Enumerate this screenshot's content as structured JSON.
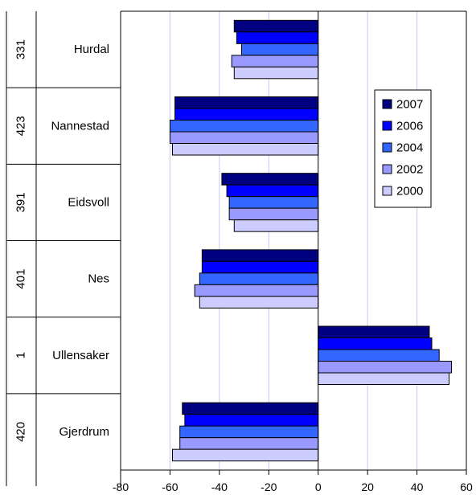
{
  "chart_data": {
    "type": "bar",
    "orientation": "horizontal",
    "categories": [
      {
        "code": "331",
        "name": "Hurdal"
      },
      {
        "code": "423",
        "name": "Nannestad"
      },
      {
        "code": "391",
        "name": "Eidsvoll"
      },
      {
        "code": "401",
        "name": "Nes"
      },
      {
        "code": "1",
        "name": "Ullensaker"
      },
      {
        "code": "420",
        "name": "Gjerdrum"
      }
    ],
    "series": [
      {
        "name": "2007",
        "color": "#000080",
        "values": [
          -34,
          -58,
          -39,
          -47,
          45,
          -55
        ]
      },
      {
        "name": "2006",
        "color": "#0000ff",
        "values": [
          -33,
          -58,
          -37,
          -47,
          46,
          -54
        ]
      },
      {
        "name": "2004",
        "color": "#3366ff",
        "values": [
          -31,
          -60,
          -36,
          -48,
          49,
          -56
        ]
      },
      {
        "name": "2002",
        "color": "#9999ff",
        "values": [
          -35,
          -60,
          -36,
          -50,
          54,
          -56
        ]
      },
      {
        "name": "2000",
        "color": "#ccccff",
        "values": [
          -34,
          -59,
          -34,
          -48,
          53,
          -59
        ]
      }
    ],
    "xlim": [
      -80,
      60
    ],
    "xticks": [
      "-80",
      "-60",
      "-40",
      "-20",
      "0",
      "20",
      "40",
      "60"
    ],
    "grid": true,
    "legend_position": "right"
  }
}
